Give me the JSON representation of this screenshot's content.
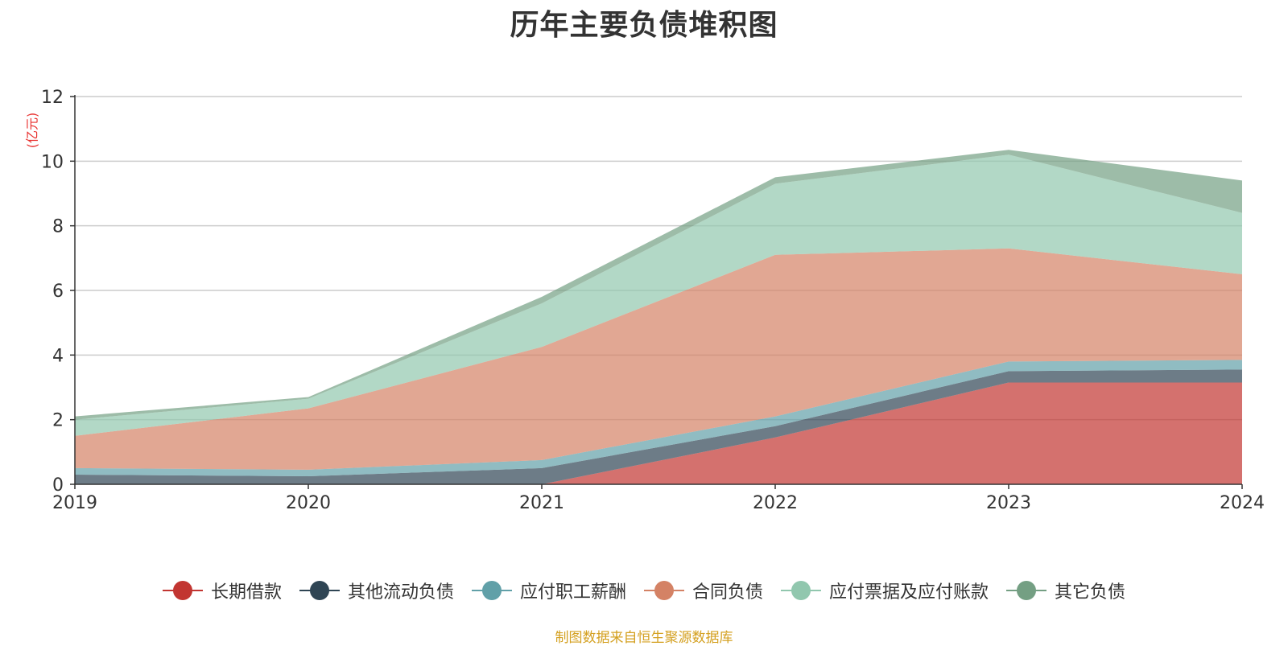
{
  "chart_data": {
    "type": "area",
    "stacked": true,
    "title": "历年主要负债堆积图",
    "unit_label": "(亿元)",
    "x": [
      "2019",
      "2020",
      "2021",
      "2022",
      "2023",
      "2024"
    ],
    "y_ticks": [
      "0",
      "2",
      "4",
      "6",
      "8",
      "10",
      "12"
    ],
    "ylim": [
      0,
      12
    ],
    "grid": true,
    "legend_position": "bottom",
    "series": [
      {
        "name": "长期借款",
        "color": "#c23531",
        "values": [
          0,
          0,
          0,
          1.45,
          3.15,
          3.15
        ]
      },
      {
        "name": "其他流动负债",
        "color": "#2f4554",
        "values": [
          0.3,
          0.25,
          0.5,
          0.35,
          0.35,
          0.4
        ]
      },
      {
        "name": "应付职工薪酬",
        "color": "#61a0a8",
        "values": [
          0.2,
          0.2,
          0.25,
          0.3,
          0.3,
          0.3
        ]
      },
      {
        "name": "合同负债",
        "color": "#d48265",
        "values": [
          1.0,
          1.9,
          3.5,
          5.0,
          3.5,
          2.65
        ]
      },
      {
        "name": "应付票据及应付账款",
        "color": "#91c7ae",
        "values": [
          0.5,
          0.3,
          1.35,
          2.2,
          2.9,
          1.9
        ]
      },
      {
        "name": "其它负债",
        "color": "#749f83",
        "values": [
          0.1,
          0.05,
          0.2,
          0.2,
          0.15,
          1.0
        ]
      }
    ]
  },
  "source_note": "制图数据来自恒生聚源数据库"
}
